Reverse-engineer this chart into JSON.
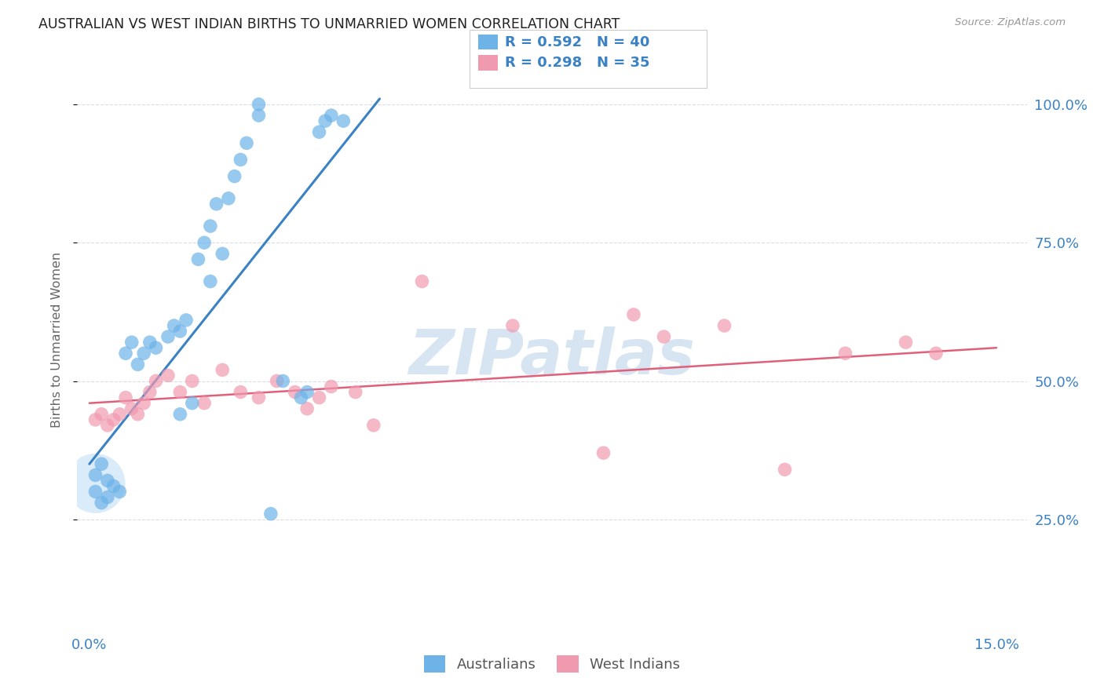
{
  "title": "AUSTRALIAN VS WEST INDIAN BIRTHS TO UNMARRIED WOMEN CORRELATION CHART",
  "source": "Source: ZipAtlas.com",
  "ylabel": "Births to Unmarried Women",
  "watermark": "ZIPatlas",
  "xlim": [
    -0.002,
    0.155
  ],
  "ylim": [
    0.05,
    1.1
  ],
  "xtick_positions": [
    0.0,
    0.025,
    0.05,
    0.075,
    0.1,
    0.125,
    0.15
  ],
  "xticklabels": [
    "0.0%",
    "",
    "",
    "",
    "",
    "",
    "15.0%"
  ],
  "ytick_positions": [
    0.25,
    0.5,
    0.75,
    1.0
  ],
  "yticklabels": [
    "25.0%",
    "50.0%",
    "75.0%",
    "100.0%"
  ],
  "aus_color": "#6db3e8",
  "wi_color": "#f09ab0",
  "aus_line_color": "#3a82c4",
  "wi_line_color": "#e0607a",
  "legend_text_color": "#3a82c4",
  "axis_tick_color": "#3a82c4",
  "legend_r1": "R = 0.592",
  "legend_n1": "N = 40",
  "legend_r2": "R = 0.298",
  "legend_n2": "N = 35",
  "legend_label1": "Australians",
  "legend_label2": "West Indians",
  "background": "#ffffff",
  "grid_color": "#d8d8e8",
  "aus_x": [
    0.001,
    0.001,
    0.002,
    0.002,
    0.003,
    0.003,
    0.004,
    0.005,
    0.006,
    0.007,
    0.008,
    0.009,
    0.01,
    0.011,
    0.013,
    0.014,
    0.015,
    0.016,
    0.018,
    0.019,
    0.02,
    0.021,
    0.023,
    0.024,
    0.025,
    0.026,
    0.03,
    0.032,
    0.035,
    0.036,
    0.038,
    0.039,
    0.04,
    0.042,
    0.028,
    0.028,
    0.02,
    0.022,
    0.015,
    0.017
  ],
  "aus_y": [
    0.3,
    0.33,
    0.28,
    0.35,
    0.32,
    0.29,
    0.31,
    0.3,
    0.55,
    0.57,
    0.53,
    0.55,
    0.57,
    0.56,
    0.58,
    0.6,
    0.59,
    0.61,
    0.72,
    0.75,
    0.78,
    0.82,
    0.83,
    0.87,
    0.9,
    0.93,
    0.26,
    0.5,
    0.47,
    0.48,
    0.95,
    0.97,
    0.98,
    0.97,
    0.98,
    1.0,
    0.68,
    0.73,
    0.44,
    0.46
  ],
  "wi_x": [
    0.001,
    0.002,
    0.003,
    0.004,
    0.005,
    0.006,
    0.007,
    0.008,
    0.009,
    0.01,
    0.011,
    0.013,
    0.015,
    0.017,
    0.019,
    0.022,
    0.025,
    0.028,
    0.031,
    0.034,
    0.036,
    0.038,
    0.04,
    0.044,
    0.047,
    0.055,
    0.07,
    0.085,
    0.09,
    0.095,
    0.105,
    0.115,
    0.125,
    0.135,
    0.14
  ],
  "wi_y": [
    0.43,
    0.44,
    0.42,
    0.43,
    0.44,
    0.47,
    0.45,
    0.44,
    0.46,
    0.48,
    0.5,
    0.51,
    0.48,
    0.5,
    0.46,
    0.52,
    0.48,
    0.47,
    0.5,
    0.48,
    0.45,
    0.47,
    0.49,
    0.48,
    0.42,
    0.68,
    0.6,
    0.37,
    0.62,
    0.58,
    0.6,
    0.34,
    0.55,
    0.57,
    0.55
  ],
  "aus_line_x": [
    0.0,
    0.048
  ],
  "aus_line_y": [
    0.35,
    1.01
  ],
  "wi_line_x": [
    0.0,
    0.15
  ],
  "wi_line_y": [
    0.46,
    0.56
  ]
}
